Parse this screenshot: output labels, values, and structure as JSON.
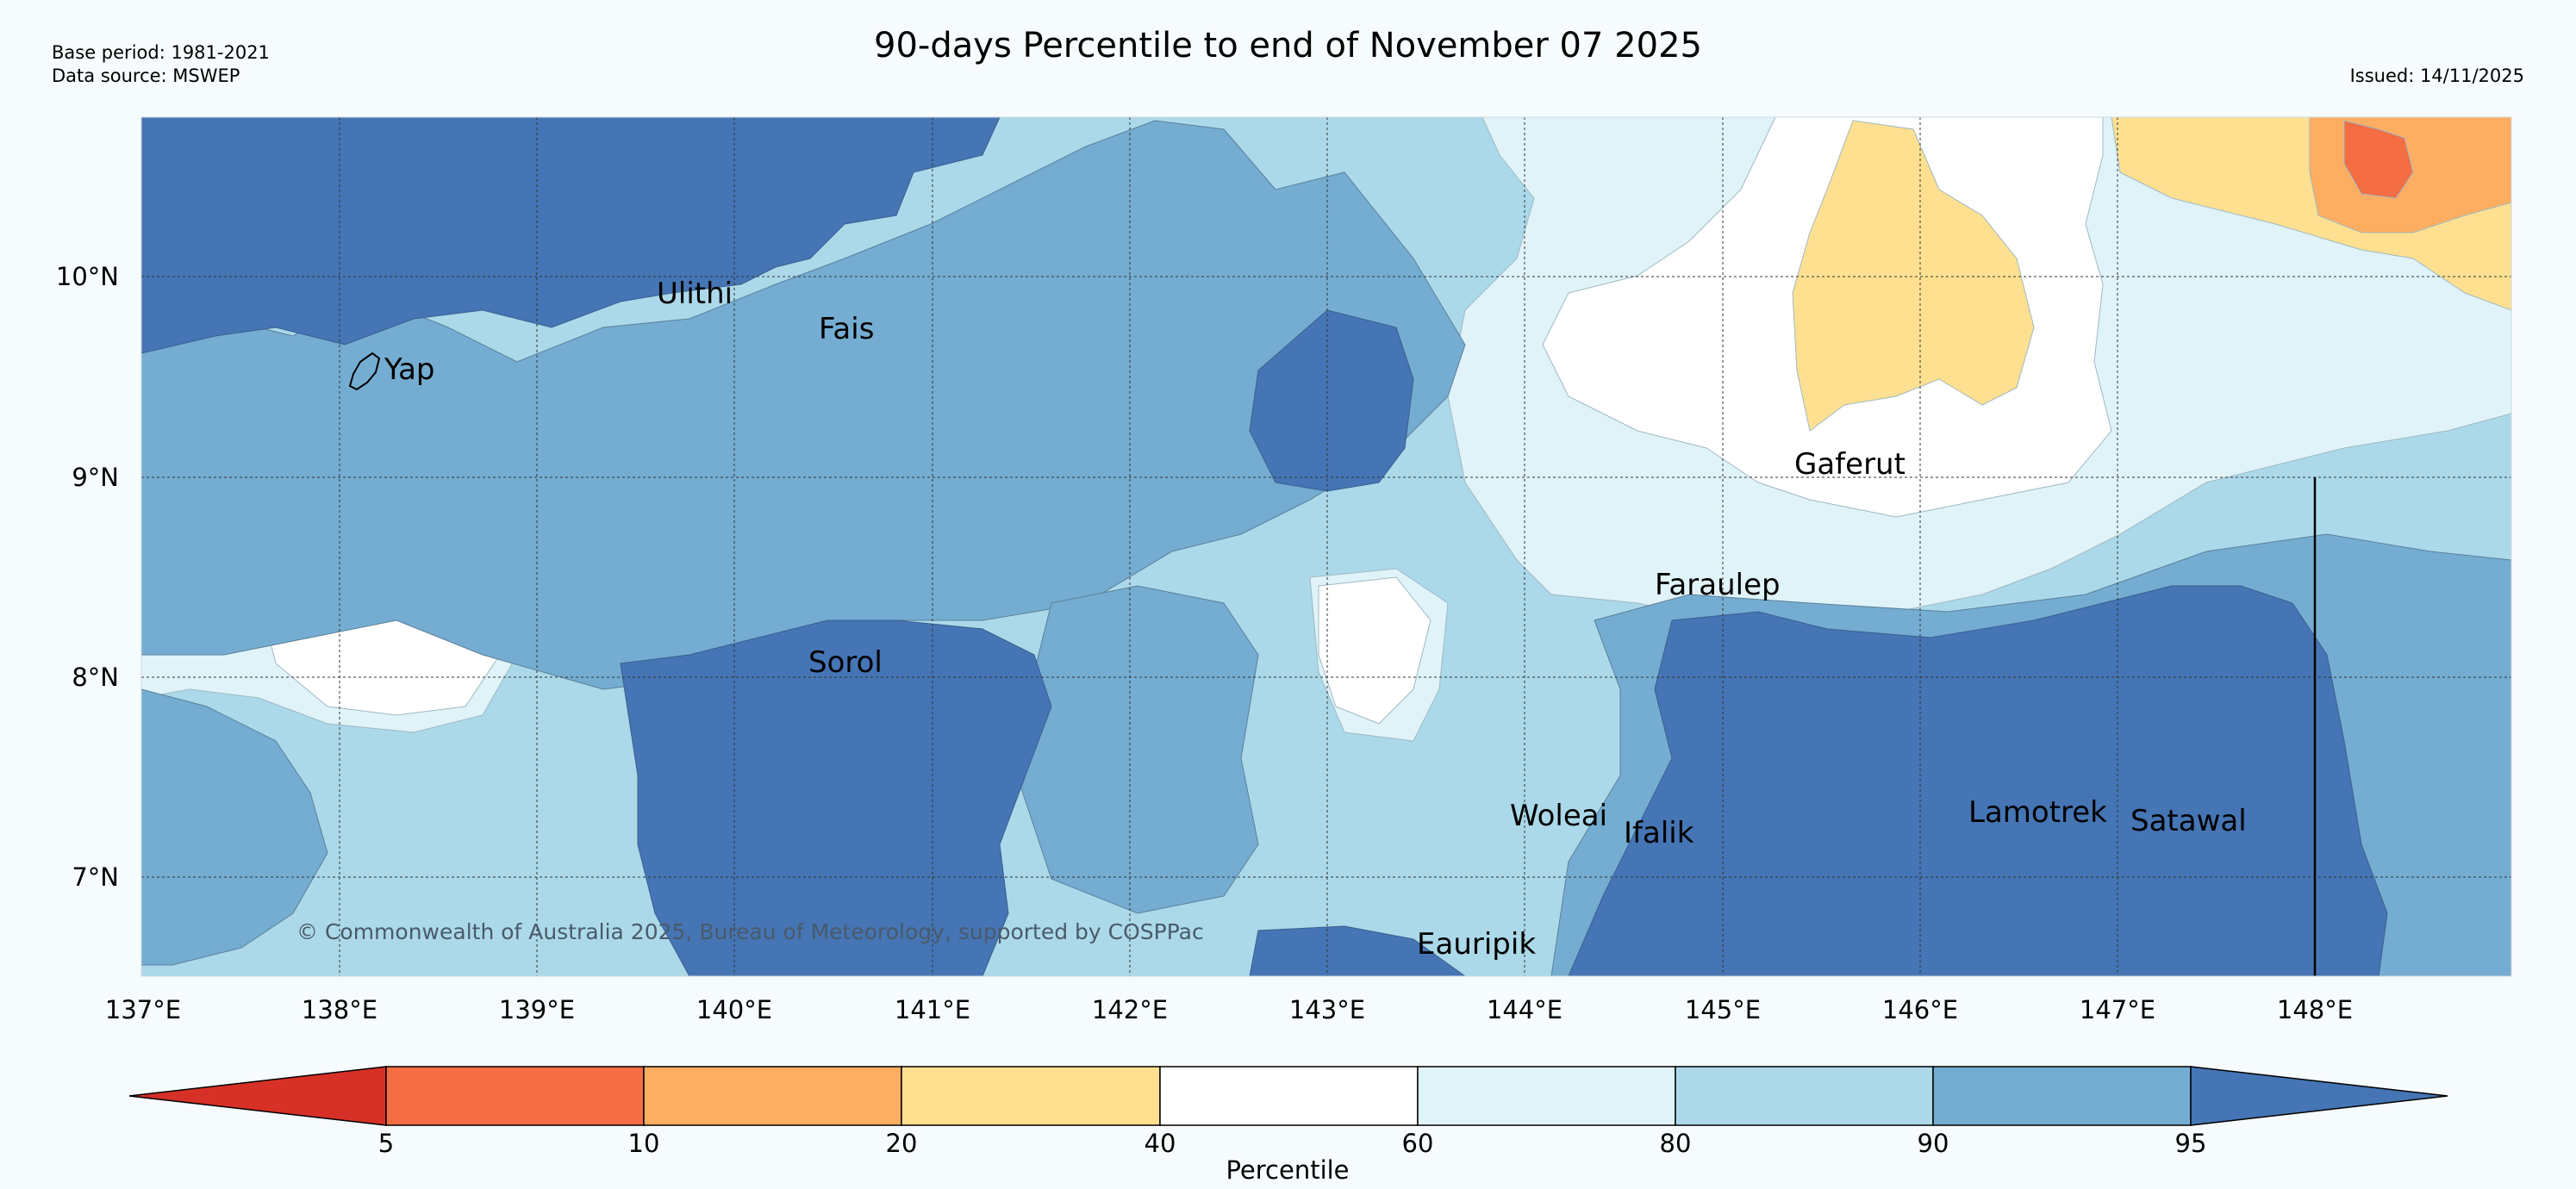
{
  "header": {
    "title": "90-days Percentile to end of November 07 2025",
    "base_period": "Base period: 1981-2021",
    "data_source": "Data source: MSWEP",
    "issued": "Issued: 14/11/2025"
  },
  "map": {
    "lon_ticks": [
      "137°E",
      "138°E",
      "139°E",
      "140°E",
      "141°E",
      "142°E",
      "143°E",
      "144°E",
      "145°E",
      "146°E",
      "147°E",
      "148°E"
    ],
    "lat_ticks": [
      "10°N",
      "9°N",
      "8°N",
      "7°N"
    ],
    "places": {
      "yap": "Yap",
      "ulithi": "Ulithi",
      "fais": "Fais",
      "gaferut": "Gaferut",
      "faraulep": "Faraulep",
      "sorol": "Sorol",
      "woleai": "Woleai",
      "ifalik": "Ifalik",
      "lamotrek": "Lamotrek",
      "satawal": "Satawal",
      "eauripik": "Eauripik"
    },
    "copyright": "© Commonwealth of Australia 2025, Bureau of Meteorology, supported by COSPPac"
  },
  "colorbar": {
    "label": "Percentile",
    "ticks": [
      "5",
      "10",
      "20",
      "40",
      "60",
      "80",
      "90",
      "95"
    ],
    "colors": [
      "#d73027",
      "#f46d43",
      "#fdae61",
      "#fee090",
      "#ffffff",
      "#e0f3f8",
      "#abd9e9",
      "#74add1",
      "#4575b4"
    ]
  }
}
